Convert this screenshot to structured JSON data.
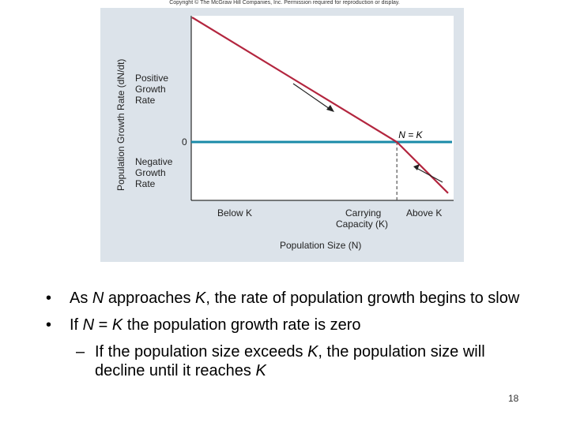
{
  "copyright": "Copyright © The McGraw Hill Companies, Inc. Permission required for reproduction or display.",
  "chart_data": {
    "type": "line",
    "ylabel": "Population Growth Rate (dN/dt)",
    "xlabel": "Population Size (N)",
    "y_annotations": {
      "positive": [
        "Positive",
        "Growth",
        "Rate"
      ],
      "zero": "0",
      "negative": [
        "Negative",
        "Growth",
        "Rate"
      ]
    },
    "x_annotations": {
      "below": "Below K",
      "carrying": [
        "Carrying",
        "Capacity (K)"
      ],
      "above": "Above K"
    },
    "point_label": "N = K",
    "series": [
      {
        "x": [
          0,
          1,
          1.25
        ],
        "y": [
          1,
          0,
          -0.41
        ]
      }
    ],
    "xlim": [
      0,
      1.25
    ],
    "ylim": [
      -0.41,
      1
    ],
    "zero_line": {
      "y": 0,
      "color": "#1a8aa8"
    },
    "colors": {
      "line": "#b3263f",
      "zero": "#1a8aa8",
      "dashed": "#555555",
      "arrow": "#222222",
      "panel": "#dce3ea"
    }
  },
  "bullets": {
    "b1": [
      "As ",
      "N",
      " approaches ",
      "K",
      ", the rate of population growth begins to slow"
    ],
    "b2": [
      "If ",
      "N",
      " = ",
      "K",
      " the population growth rate is zero"
    ],
    "b3": [
      "If the population size exceeds ",
      "K",
      ", the population size will decline until it reaches ",
      "K"
    ],
    "dash": "–"
  },
  "slide_number": "18"
}
